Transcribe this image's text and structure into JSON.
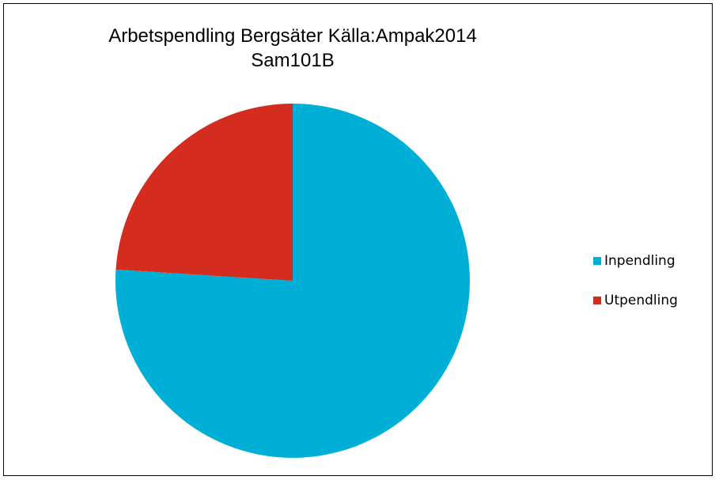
{
  "chart_data": {
    "type": "pie",
    "title": "Arbetspendling Bergsäter Källa:Ampak2014 Sam101B",
    "categories": [
      "Inpendling",
      "Utpendling"
    ],
    "values": [
      76,
      24
    ],
    "colors": [
      "#00afd6",
      "#d42d1f"
    ],
    "legend": "right"
  }
}
